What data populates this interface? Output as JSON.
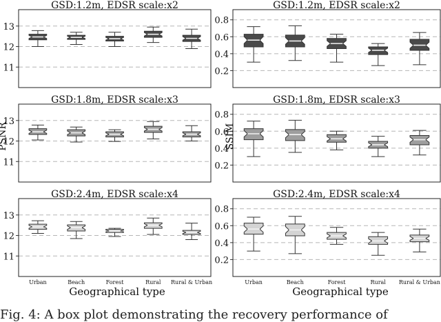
{
  "shared_xlabel": "Geographical type",
  "ylabels": {
    "psnr": "PSNR",
    "ssim": "SSIM"
  },
  "caption": "Fig. 4: A box plot demonstrating the recovery performance of",
  "chart_data": [
    {
      "type": "box",
      "metric": "PSNR",
      "title": "GSD:1.2m, EDSR scale:x2",
      "categories": [
        "Urban",
        "Beach",
        "Forest",
        "Rural",
        "Rural & Urban"
      ],
      "ylim": [
        10,
        13.8
      ],
      "yticks": [
        11,
        12,
        13
      ],
      "grid": true,
      "boxes": [
        {
          "whislo": 12.0,
          "q1": 12.33,
          "med": 12.47,
          "q3": 12.6,
          "whishi": 12.78,
          "color": "#4a4a4a"
        },
        {
          "whislo": 12.1,
          "q1": 12.35,
          "med": 12.45,
          "q3": 12.55,
          "whishi": 12.7,
          "color": "#4a4a4a"
        },
        {
          "whislo": 12.0,
          "q1": 12.27,
          "med": 12.38,
          "q3": 12.5,
          "whishi": 12.7,
          "color": "#4a4a4a"
        },
        {
          "whislo": 12.2,
          "q1": 12.45,
          "med": 12.6,
          "q3": 12.75,
          "whishi": 12.95,
          "color": "#4a4a4a"
        },
        {
          "whislo": 11.9,
          "q1": 12.25,
          "med": 12.4,
          "q3": 12.55,
          "whishi": 12.85,
          "color": "#4a4a4a"
        }
      ]
    },
    {
      "type": "box",
      "metric": "SSIM",
      "title": "GSD:1.2m, EDSR scale:x2",
      "categories": [
        "Urban",
        "Beach",
        "Forest",
        "Rural",
        "Rural & Urban"
      ],
      "ylim": [
        0.0,
        0.92
      ],
      "yticks": [
        0.2,
        0.4,
        0.6,
        0.8
      ],
      "grid": true,
      "boxes": [
        {
          "whislo": 0.3,
          "q1": 0.48,
          "med": 0.56,
          "q3": 0.63,
          "whishi": 0.72,
          "color": "#4a4a4a"
        },
        {
          "whislo": 0.32,
          "q1": 0.48,
          "med": 0.55,
          "q3": 0.62,
          "whishi": 0.73,
          "color": "#4a4a4a"
        },
        {
          "whislo": 0.3,
          "q1": 0.46,
          "med": 0.52,
          "q3": 0.58,
          "whishi": 0.63,
          "color": "#4a4a4a"
        },
        {
          "whislo": 0.26,
          "q1": 0.39,
          "med": 0.44,
          "q3": 0.48,
          "whishi": 0.52,
          "color": "#4a4a4a"
        },
        {
          "whislo": 0.27,
          "q1": 0.44,
          "med": 0.5,
          "q3": 0.57,
          "whishi": 0.65,
          "color": "#4a4a4a"
        }
      ]
    },
    {
      "type": "box",
      "metric": "PSNR",
      "title": "GSD:1.8m, EDSR scale:x3",
      "categories": [
        "Urban",
        "Beach",
        "Forest",
        "Rural",
        "Rural & Urban"
      ],
      "ylim": [
        10,
        13.8
      ],
      "yticks": [
        11,
        12,
        13
      ],
      "grid": true,
      "boxes": [
        {
          "whislo": 12.05,
          "q1": 12.32,
          "med": 12.45,
          "q3": 12.6,
          "whishi": 12.78,
          "color": "#9e9e9e"
        },
        {
          "whislo": 11.95,
          "q1": 12.25,
          "med": 12.4,
          "q3": 12.55,
          "whishi": 12.68,
          "color": "#9e9e9e"
        },
        {
          "whislo": 11.98,
          "q1": 12.2,
          "med": 12.33,
          "q3": 12.45,
          "whishi": 12.55,
          "color": "#9e9e9e"
        },
        {
          "whislo": 12.1,
          "q1": 12.42,
          "med": 12.57,
          "q3": 12.72,
          "whishi": 12.95,
          "color": "#9e9e9e"
        },
        {
          "whislo": 12.0,
          "q1": 12.2,
          "med": 12.33,
          "q3": 12.45,
          "whishi": 12.75,
          "color": "#9e9e9e"
        }
      ]
    },
    {
      "type": "box",
      "metric": "SSIM",
      "title": "GSD:1.8m, EDSR scale:x3",
      "categories": [
        "Urban",
        "Beach",
        "Forest",
        "Rural",
        "Rural & Urban"
      ],
      "ylim": [
        0.0,
        0.92
      ],
      "yticks": [
        0.2,
        0.4,
        0.6,
        0.8
      ],
      "grid": true,
      "boxes": [
        {
          "whislo": 0.3,
          "q1": 0.5,
          "med": 0.57,
          "q3": 0.63,
          "whishi": 0.72,
          "color": "#9e9e9e"
        },
        {
          "whislo": 0.35,
          "q1": 0.49,
          "med": 0.56,
          "q3": 0.62,
          "whishi": 0.73,
          "color": "#9e9e9e"
        },
        {
          "whislo": 0.38,
          "q1": 0.47,
          "med": 0.51,
          "q3": 0.56,
          "whishi": 0.6,
          "color": "#9e9e9e"
        },
        {
          "whislo": 0.3,
          "q1": 0.4,
          "med": 0.44,
          "q3": 0.48,
          "whishi": 0.54,
          "color": "#9e9e9e"
        },
        {
          "whislo": 0.32,
          "q1": 0.44,
          "med": 0.5,
          "q3": 0.55,
          "whishi": 0.61,
          "color": "#9e9e9e"
        }
      ]
    },
    {
      "type": "box",
      "metric": "PSNR",
      "title": "GSD:2.4m, EDSR scale:x4",
      "categories": [
        "Urban",
        "Beach",
        "Forest",
        "Rural",
        "Rural & Urban"
      ],
      "ylim": [
        10,
        13.8
      ],
      "yticks": [
        11,
        12,
        13
      ],
      "grid": true,
      "boxes": [
        {
          "whislo": 12.1,
          "q1": 12.3,
          "med": 12.42,
          "q3": 12.55,
          "whishi": 12.72,
          "color": "#d4d4d4"
        },
        {
          "whislo": 11.85,
          "q1": 12.22,
          "med": 12.38,
          "q3": 12.52,
          "whishi": 12.68,
          "color": "#d4d4d4"
        },
        {
          "whislo": 11.95,
          "q1": 12.15,
          "med": 12.22,
          "q3": 12.3,
          "whishi": 12.35,
          "color": "#d4d4d4"
        },
        {
          "whislo": 12.05,
          "q1": 12.35,
          "med": 12.5,
          "q3": 12.62,
          "whishi": 12.85,
          "color": "#d4d4d4"
        },
        {
          "whislo": 11.8,
          "q1": 12.05,
          "med": 12.15,
          "q3": 12.25,
          "whishi": 12.6,
          "color": "#d4d4d4"
        }
      ]
    },
    {
      "type": "box",
      "metric": "SSIM",
      "title": "GSD:2.4m, EDSR scale:x4",
      "categories": [
        "Urban",
        "Beach",
        "Forest",
        "Rural",
        "Rural & Urban"
      ],
      "ylim": [
        0.0,
        0.92
      ],
      "yticks": [
        0.2,
        0.4,
        0.6,
        0.8
      ],
      "grid": true,
      "boxes": [
        {
          "whislo": 0.3,
          "q1": 0.5,
          "med": 0.56,
          "q3": 0.63,
          "whishi": 0.7,
          "color": "#d4d4d4"
        },
        {
          "whislo": 0.27,
          "q1": 0.48,
          "med": 0.55,
          "q3": 0.62,
          "whishi": 0.71,
          "color": "#d4d4d4"
        },
        {
          "whislo": 0.38,
          "q1": 0.44,
          "med": 0.48,
          "q3": 0.52,
          "whishi": 0.58,
          "color": "#d4d4d4"
        },
        {
          "whislo": 0.25,
          "q1": 0.38,
          "med": 0.42,
          "q3": 0.47,
          "whishi": 0.52,
          "color": "#d4d4d4"
        },
        {
          "whislo": 0.29,
          "q1": 0.41,
          "med": 0.45,
          "q3": 0.49,
          "whishi": 0.56,
          "color": "#d4d4d4"
        }
      ]
    }
  ]
}
